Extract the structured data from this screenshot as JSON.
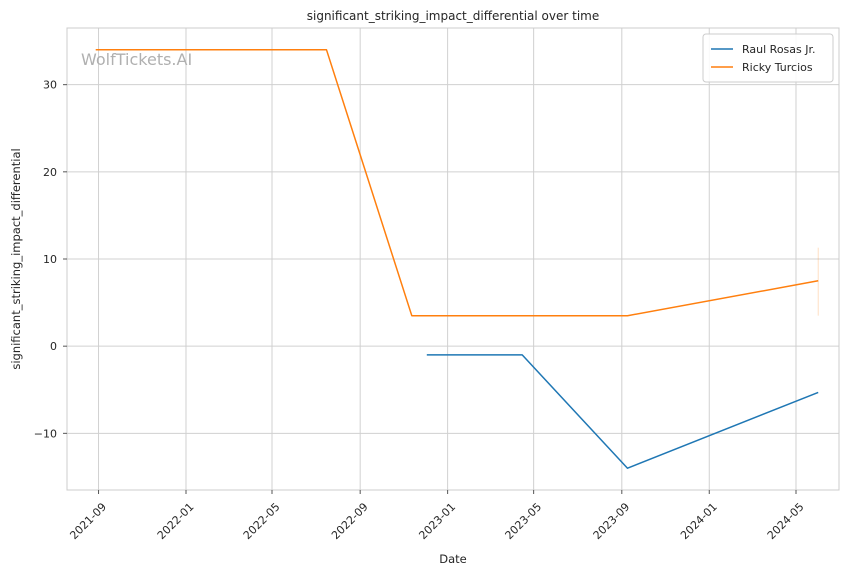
{
  "chart_data": {
    "type": "line",
    "title": "significant_striking_impact_differential over time",
    "xlabel": "Date",
    "ylabel": "significant_striking_impact_differential",
    "watermark": "WolfTickets.AI",
    "x_ticks": [
      "2021-09",
      "2022-01",
      "2022-05",
      "2022-09",
      "2023-01",
      "2023-05",
      "2023-09",
      "2024-01",
      "2024-05"
    ],
    "y_ticks": [
      -10,
      0,
      10,
      20,
      30
    ],
    "xlim": [
      "2021-07-19",
      "2024-06-30"
    ],
    "ylim": [
      -16.5,
      36.5
    ],
    "grid": true,
    "legend_position": "top-right",
    "series": [
      {
        "name": "Raul Rosas Jr.",
        "color": "#1f77b4",
        "points": [
          {
            "x": "2022-12-03",
            "y": -1.0
          },
          {
            "x": "2023-04-15",
            "y": -1.0
          },
          {
            "x": "2023-09-09",
            "y": -14.0
          },
          {
            "x": "2024-06-01",
            "y": -5.3
          }
        ]
      },
      {
        "name": "Ricky Turcios",
        "color": "#ff7f0e",
        "points": [
          {
            "x": "2021-08-28",
            "y": 34.0
          },
          {
            "x": "2022-07-16",
            "y": 34.0
          },
          {
            "x": "2022-11-12",
            "y": 3.5
          },
          {
            "x": "2023-09-09",
            "y": 3.5
          },
          {
            "x": "2024-06-01",
            "y": 7.5
          }
        ],
        "error_band": {
          "x": "2024-06-01",
          "low": 3.5,
          "high": 11.3
        }
      }
    ]
  }
}
